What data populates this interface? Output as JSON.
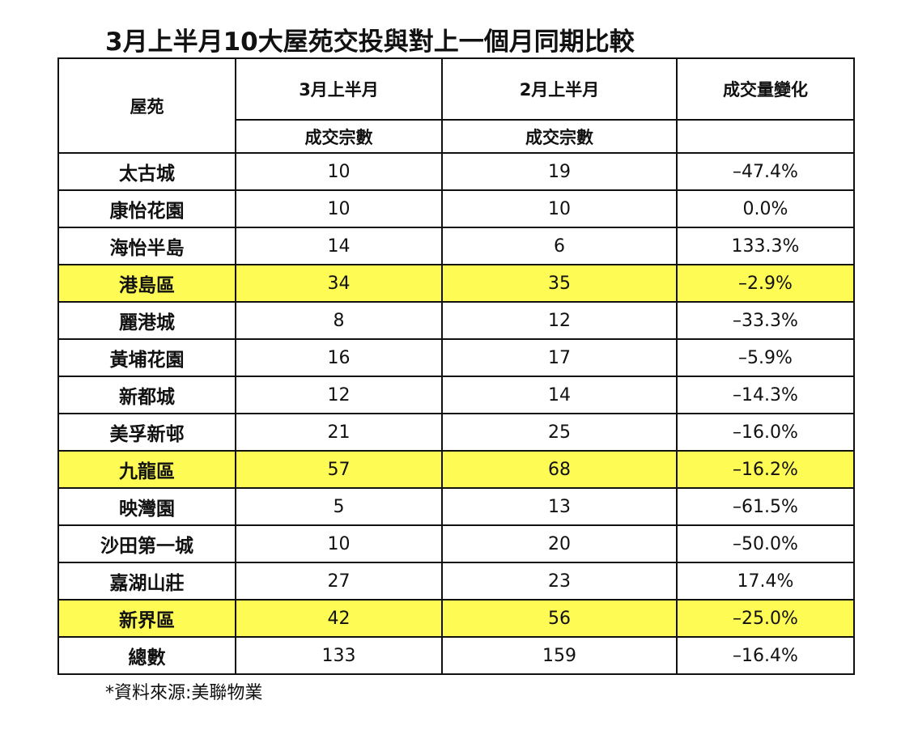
{
  "header": {
    "title": "3月上半月10大屋苑交投與對上一個月同期比較"
  },
  "table": {
    "columns": [
      "屋苑",
      "3月上半月",
      "2月上半月",
      "成交量變化"
    ],
    "subcolumns": [
      "成交宗數",
      "成交宗數"
    ],
    "rows": [
      [
        "太古城",
        "10",
        "19",
        "–47.4%"
      ],
      [
        "康怡花園",
        "10",
        "10",
        "0.0%"
      ],
      [
        "海怡半島",
        "14",
        "6",
        "133.3%"
      ],
      [
        "港島區",
        "34",
        "35",
        "–2.9%"
      ],
      [
        "麗港城",
        "8",
        "12",
        "–33.3%"
      ],
      [
        "黃埔花園",
        "16",
        "17",
        "–5.9%"
      ],
      [
        "新都城",
        "12",
        "14",
        "–14.3%"
      ],
      [
        "美孚新邨",
        "21",
        "25",
        "–16.0%"
      ],
      [
        "九龍區",
        "57",
        "68",
        "–16.2%"
      ],
      [
        "映灣園",
        "5",
        "13",
        "–61.5%"
      ],
      [
        "沙田第一城",
        "10",
        "20",
        "–50.0%"
      ],
      [
        "嘉湖山莊",
        "27",
        "23",
        "17.4%"
      ],
      [
        "新界區",
        "42",
        "56",
        "–25.0%"
      ],
      [
        "總數",
        "133",
        "159",
        "–16.4%"
      ]
    ],
    "highlighted_rows": [
      3,
      8,
      12
    ],
    "highlight_color": "#fdfb54"
  },
  "footnote": "*資料來源:美聯物業"
}
